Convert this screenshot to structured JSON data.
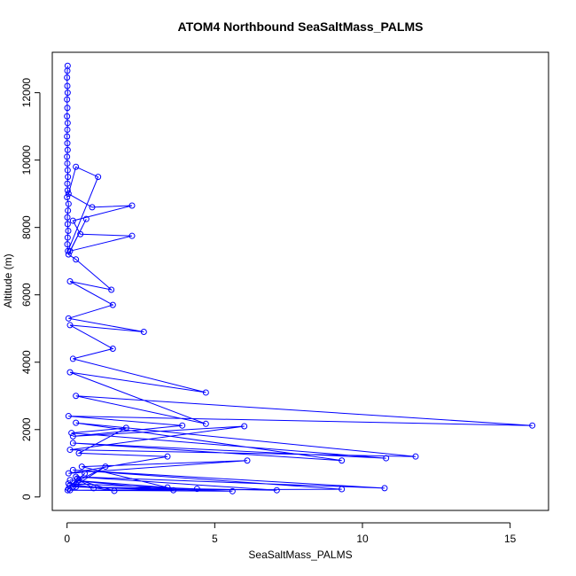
{
  "chart_data": {
    "type": "line",
    "title": "ATOM4 Northbound SeaSaltMass_PALMS",
    "xlabel": "SeaSaltMass_PALMS",
    "ylabel": "Altitude (m)",
    "xlim": [
      -0.5,
      16.3
    ],
    "ylim": [
      -400,
      13200
    ],
    "xticks": [
      0,
      5,
      10,
      15
    ],
    "yticks": [
      0,
      2000,
      4000,
      6000,
      8000,
      10000,
      12000
    ],
    "x_tick_labels": [
      "0",
      "5",
      "10",
      "15"
    ],
    "y_tick_labels": [
      "0",
      "2000",
      "4000",
      "6000",
      "8000",
      "10000",
      "12000"
    ],
    "color": "#0000ff",
    "marker": "open-circle",
    "series": [
      {
        "x": [
          0.02,
          0.01,
          0.0,
          0.01,
          0.02,
          0.0,
          0.01,
          0.0,
          0.02,
          0.01,
          0.0,
          0.01,
          0.02,
          0.0,
          0.01,
          0.02,
          0.03,
          0.01,
          0.02,
          0.0,
          0.05,
          0.03,
          0.01,
          0.02,
          0.04,
          0.02,
          0.01,
          0.03,
          1.05,
          0.3,
          0.05,
          0.85,
          2.2,
          0.2,
          0.45,
          2.2,
          0.1,
          0.65,
          0.05,
          0.3,
          1.5,
          0.1,
          1.55,
          0.05,
          2.6,
          0.1,
          1.55,
          0.2,
          4.7,
          0.1,
          4.7,
          0.3,
          15.75,
          0.05,
          3.9,
          0.2,
          6.0,
          0.1,
          11.8,
          0.3,
          9.3,
          0.2,
          10.8,
          0.15,
          2.0,
          0.4,
          3.4,
          0.05,
          6.1,
          0.5,
          3.4,
          0.1,
          3.6,
          0.2,
          7.1,
          0.3,
          10.75,
          0.2,
          9.3,
          0.1,
          5.6,
          0.3,
          4.4,
          0.05,
          1.6,
          0.4,
          0.9,
          0.1,
          1.3,
          0.2,
          0.6,
          0.05,
          0.35,
          0.02
        ],
        "y": [
          12800,
          12650,
          12450,
          12200,
          12000,
          11800,
          11550,
          11300,
          11100,
          10900,
          10700,
          10500,
          10300,
          10100,
          9900,
          9700,
          9500,
          9300,
          9100,
          8900,
          8700,
          8500,
          8300,
          8100,
          7900,
          7700,
          7500,
          7300,
          9500,
          9800,
          9000,
          8600,
          8650,
          8200,
          7800,
          7750,
          7300,
          8250,
          7200,
          7050,
          6150,
          6400,
          5700,
          5300,
          4900,
          5100,
          4400,
          4100,
          3100,
          3700,
          2170,
          3000,
          2120,
          2400,
          2120,
          1800,
          2100,
          1400,
          1200,
          2200,
          1080,
          1600,
          1150,
          1900,
          2050,
          1300,
          1200,
          700,
          1080,
          900,
          280,
          500,
          200,
          300,
          200,
          600,
          260,
          800,
          230,
          200,
          170,
          300,
          240,
          400,
          180,
          500,
          260,
          350,
          900,
          300,
          700,
          250,
          550,
          200
        ]
      }
    ]
  }
}
